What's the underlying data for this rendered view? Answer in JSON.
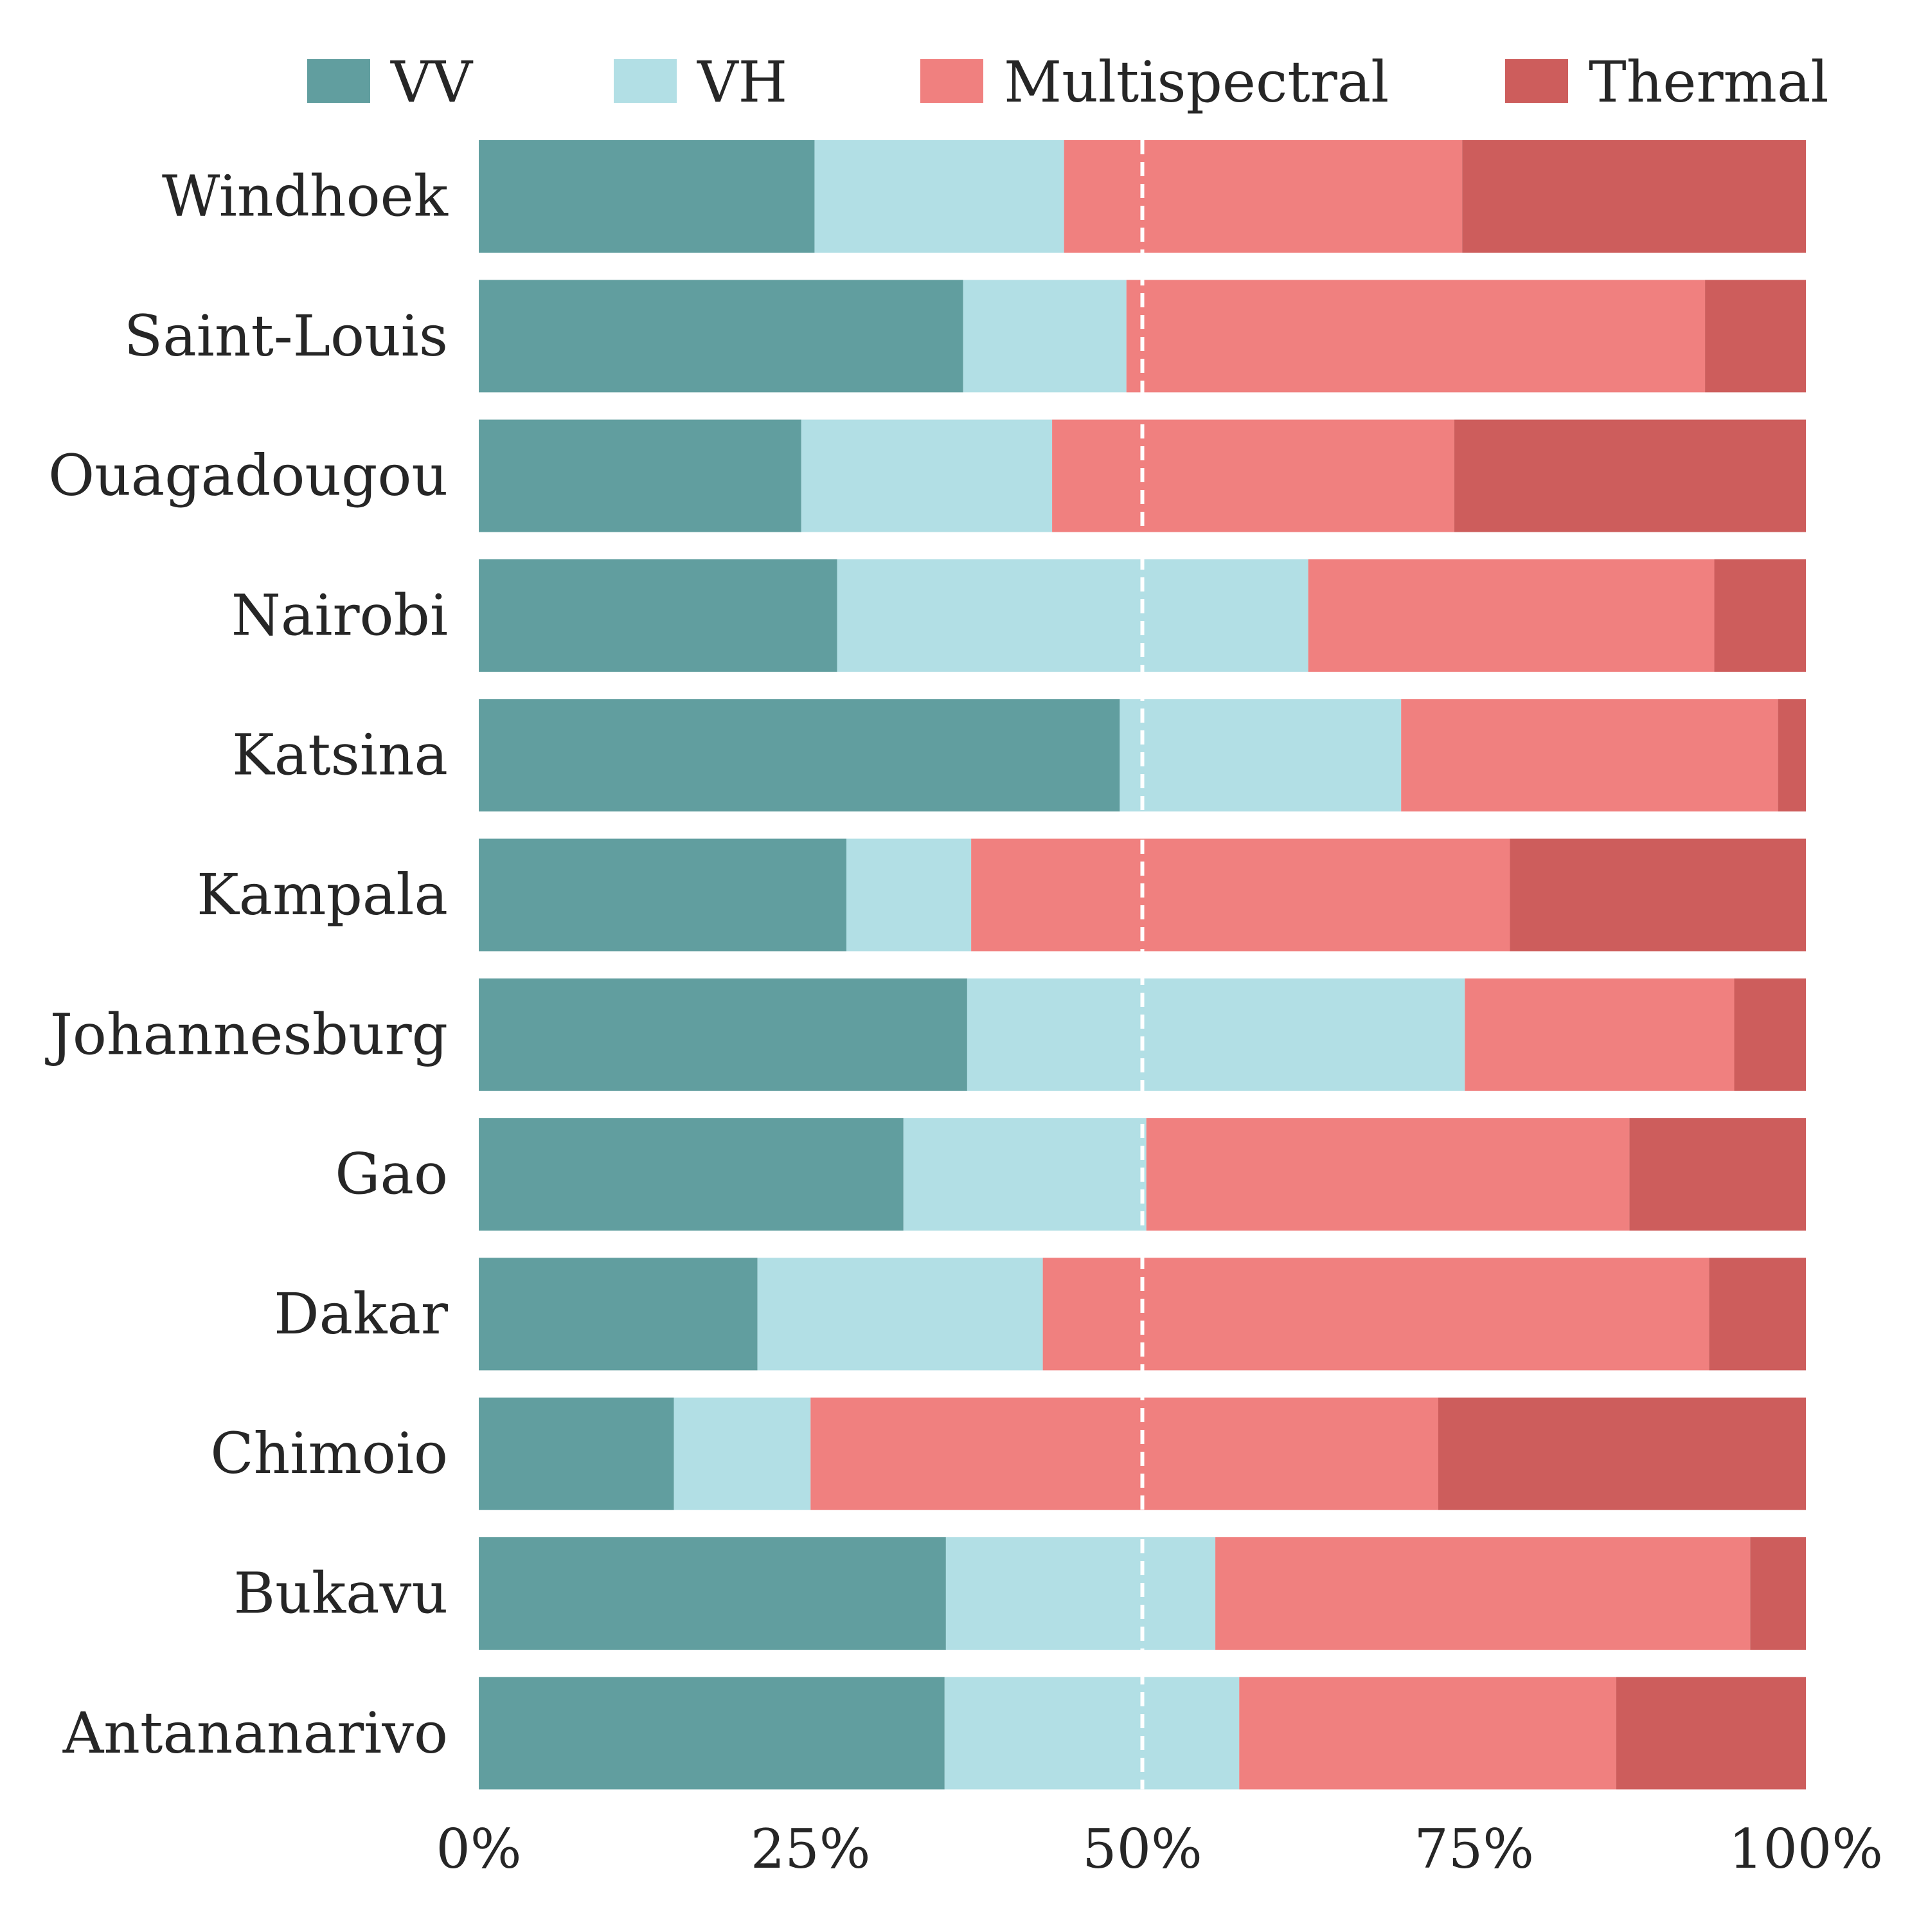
{
  "chart_data": {
    "type": "bar",
    "orientation": "horizontal",
    "stacked": true,
    "categories": [
      "Windhoek",
      "Saint-Louis",
      "Ouagadougou",
      "Nairobi",
      "Katsina",
      "Kampala",
      "Johannesburg",
      "Gao",
      "Dakar",
      "Chimoio",
      "Bukavu",
      "Antananarivo"
    ],
    "series": [
      {
        "name": "VV",
        "color": "#619e9f",
        "values": [
          25.3,
          36.5,
          24.3,
          27.0,
          48.3,
          27.7,
          36.8,
          32.0,
          21.0,
          14.7,
          35.2,
          35.1
        ]
      },
      {
        "name": "VH",
        "color": "#b2dfe5",
        "values": [
          18.8,
          12.3,
          18.9,
          35.5,
          21.2,
          9.4,
          37.5,
          18.3,
          21.5,
          10.3,
          20.3,
          22.2
        ]
      },
      {
        "name": "Multispectral",
        "color": "#f0807f",
        "values": [
          30.0,
          43.6,
          30.3,
          30.6,
          28.4,
          40.6,
          20.3,
          36.4,
          50.2,
          47.3,
          40.3,
          28.4
        ]
      },
      {
        "name": "Thermal",
        "color": "#cd5d5c",
        "values": [
          25.9,
          7.6,
          26.5,
          6.9,
          2.1,
          22.3,
          5.4,
          13.3,
          7.3,
          27.7,
          4.2,
          14.3
        ]
      }
    ],
    "xlim": [
      0,
      100
    ],
    "xticks": [
      "0%",
      "25%",
      "50%",
      "75%",
      "100%"
    ],
    "reference_line": {
      "x": 50,
      "style": "dashed",
      "color": "#ffffff"
    },
    "legend": {
      "position": "top",
      "entries": [
        "VV",
        "VH",
        "Multispectral",
        "Thermal"
      ]
    },
    "grid": false,
    "title": "",
    "xlabel": "",
    "ylabel": ""
  }
}
